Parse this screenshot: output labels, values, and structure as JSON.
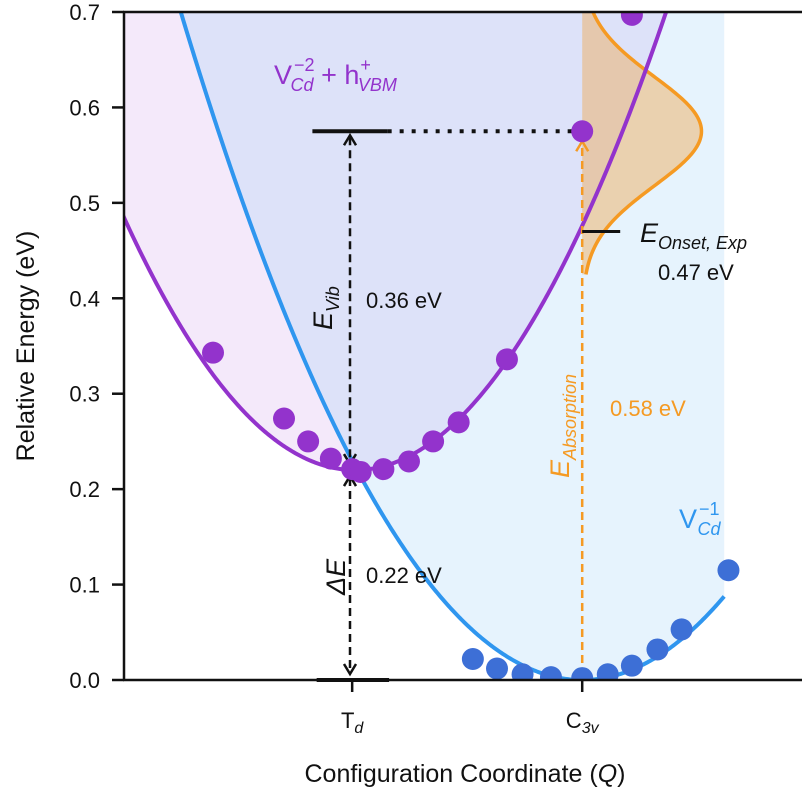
{
  "chart_data": {
    "type": "line",
    "xlabel": "Configuration Coordinate (",
    "xlabel_q": "Q",
    "xlabel_end": ")",
    "ylabel": "Relative Energy (eV)",
    "xlim": [
      -2.1,
      2.6
    ],
    "ylim": [
      0,
      0.7
    ],
    "yticks": [
      "0.0",
      "0.1",
      "0.2",
      "0.3",
      "0.4",
      "0.5",
      "0.6",
      "0.7"
    ],
    "xticks": [
      {
        "x": -0.02,
        "label_main": "T",
        "label_sub": "d"
      },
      {
        "x": 1.6,
        "label_main": "C",
        "label_sub": "3v"
      }
    ],
    "colors": {
      "purple": "#9333cc",
      "blue": "#2f96ef",
      "blue_dots": "#3d6fd6",
      "orange": "#f59a23",
      "black": "#111111"
    },
    "series": [
      {
        "name_main": "V",
        "name_sub": "Cd",
        "name_sup": "−2",
        "name_tail_main": " + h",
        "name_tail_sub": "VBM",
        "name_tail_sup": "+",
        "curve": {
          "center": 0.0,
          "min": 0.22,
          "k": 0.1
        },
        "points": [
          {
            "x": -1.0,
            "y": 0.343
          },
          {
            "x": -0.5,
            "y": 0.274
          },
          {
            "x": -0.33,
            "y": 0.25
          },
          {
            "x": -0.17,
            "y": 0.232
          },
          {
            "x": -0.02,
            "y": 0.221
          },
          {
            "x": 0.04,
            "y": 0.218
          },
          {
            "x": 0.2,
            "y": 0.221
          },
          {
            "x": 0.38,
            "y": 0.229
          },
          {
            "x": 0.55,
            "y": 0.25
          },
          {
            "x": 0.73,
            "y": 0.27
          },
          {
            "x": 1.07,
            "y": 0.336
          },
          {
            "x": 1.6,
            "y": 0.575
          },
          {
            "x": 1.95,
            "y": 0.697
          }
        ]
      },
      {
        "name_main": "V",
        "name_sub": "Cd",
        "name_sup": "−1",
        "curve": {
          "center": 1.6,
          "min": 0.0,
          "k": 0.0876
        },
        "points": [
          {
            "x": 0.83,
            "y": 0.022
          },
          {
            "x": 1.0,
            "y": 0.012
          },
          {
            "x": 1.18,
            "y": 0.006
          },
          {
            "x": 1.38,
            "y": 0.003
          },
          {
            "x": 1.6,
            "y": 0.002
          },
          {
            "x": 1.78,
            "y": 0.006
          },
          {
            "x": 1.95,
            "y": 0.015
          },
          {
            "x": 2.13,
            "y": 0.032
          },
          {
            "x": 2.3,
            "y": 0.053
          },
          {
            "x": 2.63,
            "y": 0.115
          }
        ]
      }
    ],
    "absorption_profile": {
      "center_y": 0.575,
      "sigma": 0.057,
      "peak_dx": 0.84
    },
    "annotations": {
      "e_vib": {
        "main": "E",
        "sub": "Vib",
        "value": "0.36 eV"
      },
      "delta_e": {
        "main": "ΔE",
        "value": "0.22 eV"
      },
      "e_absorption": {
        "main": "E",
        "sub": "Absorption",
        "value": "0.58 eV"
      },
      "e_onset": {
        "main": "E",
        "sub": "Onset, Exp",
        "value": "0.47 eV",
        "y": 0.47
      }
    }
  }
}
